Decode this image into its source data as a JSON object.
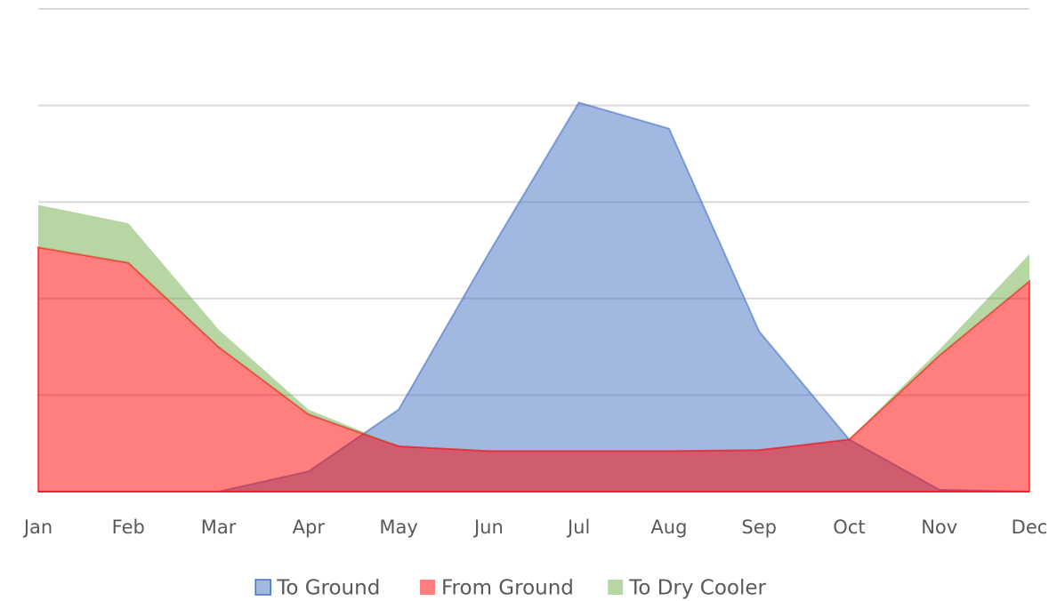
{
  "chart_data": {
    "type": "area",
    "categories": [
      "Jan",
      "Feb",
      "Mar",
      "Apr",
      "May",
      "Jun",
      "Jul",
      "Aug",
      "Sep",
      "Oct",
      "Nov",
      "Dec"
    ],
    "series": [
      {
        "name": "To Ground",
        "color": "#4472c4",
        "values": [
          0,
          0,
          0,
          0.21,
          0.85,
          2.47,
          4.03,
          3.76,
          1.66,
          0.54,
          0.02,
          0
        ]
      },
      {
        "name": "From Ground",
        "color": "#ff0000",
        "values": [
          2.53,
          2.37,
          1.5,
          0.8,
          0.47,
          0.42,
          0.42,
          0.42,
          0.43,
          0.54,
          1.41,
          2.18
        ]
      },
      {
        "name": "To Dry Cooler",
        "color": "#70ad47",
        "stack_on": "From Ground",
        "values": [
          0.44,
          0.41,
          0.18,
          0.05,
          0,
          0,
          0,
          0,
          0,
          0,
          0.06,
          0.28
        ]
      }
    ],
    "ylim": [
      0,
      5
    ],
    "yticks": [
      0,
      1,
      2,
      3,
      4,
      5
    ],
    "grid": true,
    "legend": "bottom"
  }
}
